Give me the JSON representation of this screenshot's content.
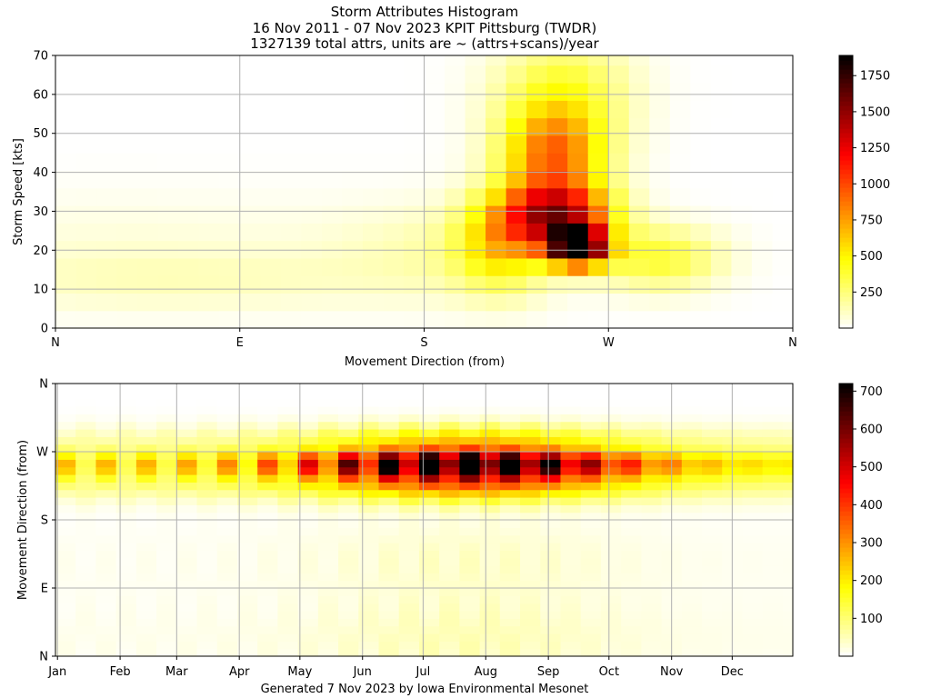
{
  "title": {
    "line1": "Storm Attributes Histogram",
    "line2": "16 Nov 2011 - 07 Nov 2023 KPIT Pittsburg (TWDR)",
    "line3": "1327139 total attrs, units are ~ (attrs+scans)/year"
  },
  "footer": "Generated 7 Nov 2023 by Iowa Environmental Mesonet",
  "colormap": "hot_r",
  "chart_data": [
    {
      "type": "heatmap",
      "xlabel": "Movement Direction (from)",
      "ylabel": "Storm Speed [kts]",
      "xlim": [
        0,
        360
      ],
      "ylim": [
        0,
        70
      ],
      "x_ticks": [
        {
          "value": 0,
          "label": "N"
        },
        {
          "value": 90,
          "label": "E"
        },
        {
          "value": 180,
          "label": "S"
        },
        {
          "value": 270,
          "label": "W"
        },
        {
          "value": 360,
          "label": "N"
        }
      ],
      "y_ticks": [
        0,
        10,
        20,
        30,
        40,
        50,
        60,
        70
      ],
      "x_bin_width": 10,
      "y_bin_width": 4.5,
      "grid": true,
      "colorbar": {
        "min": 0,
        "max": 1890,
        "ticks": [
          250,
          500,
          750,
          1000,
          1250,
          1500,
          1750
        ]
      },
      "peak": {
        "direction": 255,
        "speed": 21,
        "value": 1890
      },
      "hotspots": [
        {
          "direction": 230,
          "speed": 30,
          "value": 1200
        },
        {
          "direction": 260,
          "speed": 31,
          "value": 1230
        },
        {
          "direction": 250,
          "speed": 20,
          "value": 1700
        },
        {
          "direction": 275,
          "speed": 19,
          "value": 1350
        },
        {
          "direction": 240,
          "speed": 45,
          "value": 750
        },
        {
          "direction": 250,
          "speed": 60,
          "value": 300
        }
      ]
    },
    {
      "type": "heatmap",
      "xlabel": "",
      "ylabel": "Movement Direction (from)",
      "xlim": [
        0,
        365
      ],
      "ylim": [
        0,
        360
      ],
      "x_ticks": [
        {
          "value": 1,
          "label": "Jan"
        },
        {
          "value": 32,
          "label": "Feb"
        },
        {
          "value": 60,
          "label": "Mar"
        },
        {
          "value": 91,
          "label": "Apr"
        },
        {
          "value": 121,
          "label": "May"
        },
        {
          "value": 152,
          "label": "Jun"
        },
        {
          "value": 182,
          "label": "Jul"
        },
        {
          "value": 213,
          "label": "Aug"
        },
        {
          "value": 244,
          "label": "Sep"
        },
        {
          "value": 274,
          "label": "Oct"
        },
        {
          "value": 305,
          "label": "Nov"
        },
        {
          "value": 335,
          "label": "Dec"
        }
      ],
      "y_ticks": [
        {
          "value": 0,
          "label": "N"
        },
        {
          "value": 90,
          "label": "E"
        },
        {
          "value": 180,
          "label": "S"
        },
        {
          "value": 270,
          "label": "W"
        },
        {
          "value": 360,
          "label": "N"
        }
      ],
      "x_bin_width": 10,
      "y_bin_width": 10,
      "grid": true,
      "colorbar": {
        "min": 0,
        "max": 720,
        "ticks": [
          100,
          200,
          300,
          400,
          500,
          600,
          700
        ]
      },
      "monthly_peak": [
        {
          "day": 5,
          "value": 250
        },
        {
          "day": 35,
          "value": 90
        },
        {
          "day": 65,
          "value": 280
        },
        {
          "day": 95,
          "value": 420
        },
        {
          "day": 115,
          "value": 320
        },
        {
          "day": 125,
          "value": 430
        },
        {
          "day": 155,
          "value": 520
        },
        {
          "day": 165,
          "value": 550
        },
        {
          "day": 185,
          "value": 580
        },
        {
          "day": 195,
          "value": 600
        },
        {
          "day": 205,
          "value": 620
        },
        {
          "day": 215,
          "value": 720
        },
        {
          "day": 225,
          "value": 700
        },
        {
          "day": 235,
          "value": 640
        },
        {
          "day": 245,
          "value": 560
        },
        {
          "day": 265,
          "value": 620
        },
        {
          "day": 285,
          "value": 450
        },
        {
          "day": 295,
          "value": 380
        },
        {
          "day": 325,
          "value": 250
        },
        {
          "day": 345,
          "value": 430
        }
      ]
    }
  ]
}
